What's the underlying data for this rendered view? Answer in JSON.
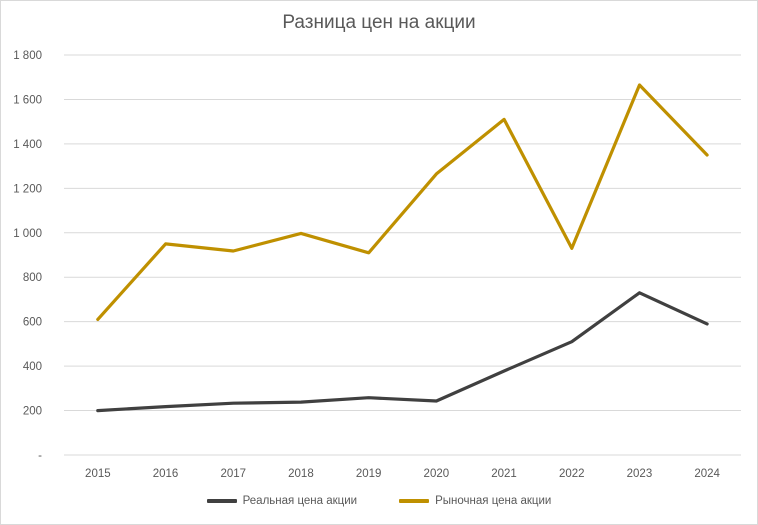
{
  "chart_data": {
    "type": "line",
    "title": "Разница цен на акции",
    "xlabel": "",
    "ylabel": "",
    "categories": [
      "2015",
      "2016",
      "2017",
      "2018",
      "2019",
      "2020",
      "2021",
      "2022",
      "2023",
      "2024"
    ],
    "series": [
      {
        "name": "Реальная цена акции",
        "color": "#404040",
        "values": [
          200,
          218,
          233,
          238,
          258,
          243,
          378,
          510,
          730,
          590
        ]
      },
      {
        "name": "Рыночная цена акции",
        "color": "#bf9000",
        "values": [
          610,
          950,
          918,
          997,
          910,
          1265,
          1510,
          930,
          1665,
          1350
        ]
      }
    ],
    "yticks": [
      "-",
      "200",
      "400",
      "600",
      "800",
      "1 000",
      "1 200",
      "1 400",
      "1 600",
      "1 800"
    ],
    "ylim": [
      0,
      1800
    ],
    "grid": true,
    "legend_position": "bottom"
  },
  "legend": {
    "items": [
      {
        "label": "Реальная цена акции",
        "color": "#404040"
      },
      {
        "label": "Рыночная цена акции",
        "color": "#bf9000"
      }
    ]
  }
}
